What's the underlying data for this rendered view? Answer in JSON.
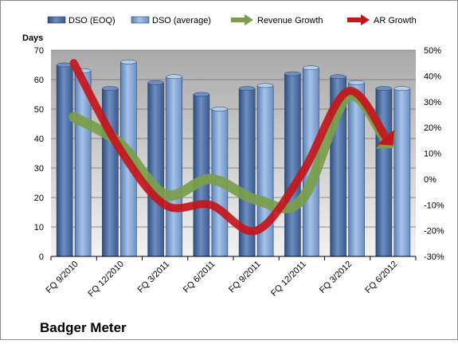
{
  "colors": {
    "dso_eoq": "#4f6fa3",
    "dso_avg": "#7da4d4",
    "revenue_growth": "#7a9e4a",
    "ar_growth": "#c4161c",
    "plot_top": "#a9a9a9",
    "plot_bottom": "#f2f2f2"
  },
  "chart_data": {
    "type": "bar",
    "title": "Badger Meter",
    "ylabel": "Days",
    "ylim": [
      0,
      70
    ],
    "y_ticks": [
      "0",
      "10",
      "20",
      "30",
      "40",
      "50",
      "60",
      "70"
    ],
    "y2lim": [
      -30,
      50
    ],
    "y2_ticks": [
      "-30%",
      "-20%",
      "-10%",
      "0%",
      "10%",
      "20%",
      "30%",
      "40%",
      "50%"
    ],
    "categories": [
      "FQ 9/2010",
      "FQ 12/2010",
      "FQ 3/2011",
      "FQ 6/2011",
      "FQ 9/2011",
      "FQ 12/2011",
      "FQ 3/2012",
      "FQ 6/2012"
    ],
    "legend_position": "top",
    "grid": true,
    "series": [
      {
        "name": "DSO (EOQ)",
        "kind": "bar",
        "axis": "left",
        "values": [
          65,
          57,
          59,
          55,
          57,
          62,
          61,
          57
        ]
      },
      {
        "name": "DSO (average)",
        "kind": "bar",
        "axis": "left",
        "values": [
          63,
          66,
          61,
          50,
          58,
          64,
          59,
          57
        ]
      },
      {
        "name": "Revenue Growth",
        "kind": "arrow",
        "axis": "right",
        "values": [
          24,
          14,
          -6,
          0,
          -8,
          -8,
          32,
          12
        ]
      },
      {
        "name": "AR Growth",
        "kind": "arrow",
        "axis": "right",
        "values": [
          45,
          12,
          -10,
          -10,
          -20,
          2,
          34,
          13
        ]
      }
    ]
  }
}
